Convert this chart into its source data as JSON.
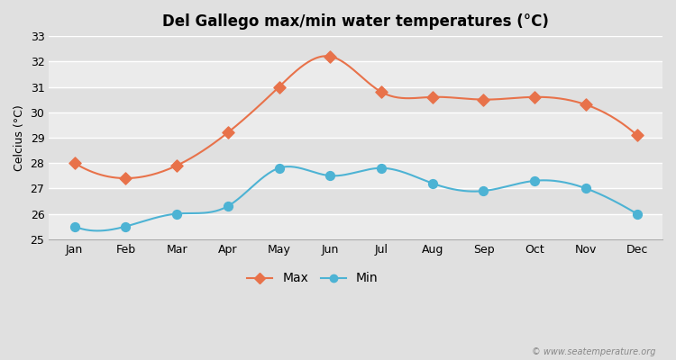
{
  "title": "Del Gallego max/min water temperatures (°C)",
  "ylabel": "Celcius (°C)",
  "months": [
    "Jan",
    "Feb",
    "Mar",
    "Apr",
    "May",
    "Jun",
    "Jul",
    "Aug",
    "Sep",
    "Oct",
    "Nov",
    "Dec"
  ],
  "max_temps": [
    28.0,
    27.4,
    27.9,
    29.2,
    31.0,
    32.2,
    30.8,
    30.6,
    30.5,
    30.6,
    30.3,
    29.1
  ],
  "min_temps": [
    25.5,
    25.5,
    26.0,
    26.3,
    27.8,
    27.5,
    27.8,
    27.2,
    26.9,
    27.3,
    27.0,
    26.0
  ],
  "max_color": "#e8724a",
  "min_color": "#4db3d4",
  "outer_bg_color": "#e0e0e0",
  "plot_bg_light": "#ebebeb",
  "plot_bg_dark": "#e0e0e0",
  "grid_color": "#ffffff",
  "ylim": [
    25,
    33
  ],
  "yticks": [
    25,
    26,
    27,
    28,
    29,
    30,
    31,
    32,
    33
  ],
  "marker_size_max": 7,
  "marker_size_min": 8,
  "line_width": 1.5,
  "title_fontsize": 12,
  "axis_fontsize": 9,
  "legend_fontsize": 10,
  "watermark": "© www.seatemperature.org"
}
